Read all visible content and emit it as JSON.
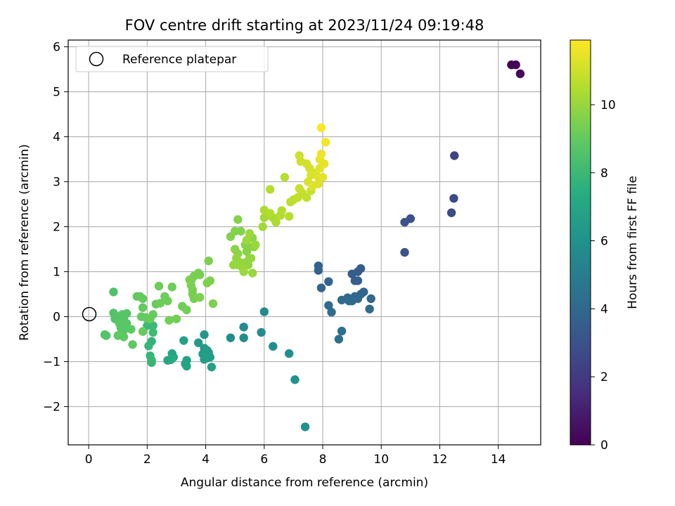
{
  "chart_data": {
    "type": "scatter",
    "title": "FOV centre drift starting at 2023/11/24 09:19:48",
    "xlabel": "Angular distance from reference (arcmin)",
    "ylabel": "Rotation from reference (arcmin)",
    "xlim": [
      -0.7,
      15.45
    ],
    "ylim": [
      -2.85,
      6.15
    ],
    "xticks": [
      0,
      2,
      4,
      6,
      8,
      10,
      12,
      14
    ],
    "yticks": [
      -2,
      -1,
      0,
      1,
      2,
      3,
      4,
      5,
      6
    ],
    "xtick_labels": [
      "0",
      "2",
      "4",
      "6",
      "8",
      "10",
      "12",
      "14"
    ],
    "ytick_labels": [
      "−2",
      "−1",
      "0",
      "1",
      "2",
      "3",
      "4",
      "5",
      "6"
    ],
    "grid": true,
    "legend": {
      "placement": "top-left",
      "entries": [
        "Reference platepar"
      ]
    },
    "reference_point": {
      "x": 0,
      "y": 0
    },
    "colorbar": {
      "label": "Hours from first FF file",
      "colormap": "viridis",
      "range": [
        0,
        11.9
      ],
      "ticks": [
        0,
        2,
        4,
        6,
        8,
        10
      ],
      "tick_labels": [
        "0",
        "2",
        "4",
        "6",
        "8",
        "10"
      ]
    },
    "points": [
      [
        14.45,
        5.6,
        0.05
      ],
      [
        14.6,
        5.6,
        0.1
      ],
      [
        14.75,
        5.4,
        0.2
      ],
      [
        12.5,
        3.58,
        2.4
      ],
      [
        12.48,
        2.63,
        2.6
      ],
      [
        12.4,
        2.31,
        2.7
      ],
      [
        11.0,
        2.18,
        2.9
      ],
      [
        10.8,
        2.1,
        3.0
      ],
      [
        10.8,
        1.43,
        3.1
      ],
      [
        9.3,
        1.07,
        3.4
      ],
      [
        9.2,
        1.0,
        3.5
      ],
      [
        9.0,
        0.95,
        3.5
      ],
      [
        9.1,
        0.8,
        3.6
      ],
      [
        9.2,
        0.8,
        3.6
      ],
      [
        7.85,
        1.13,
        3.7
      ],
      [
        7.85,
        1.03,
        3.7
      ],
      [
        8.2,
        0.78,
        3.8
      ],
      [
        7.95,
        0.64,
        3.8
      ],
      [
        9.65,
        0.4,
        3.9
      ],
      [
        9.4,
        0.55,
        3.9
      ],
      [
        9.3,
        0.5,
        3.9
      ],
      [
        9.1,
        0.45,
        4.0
      ],
      [
        9.2,
        0.4,
        4.0
      ],
      [
        9.0,
        0.35,
        4.0
      ],
      [
        8.85,
        0.42,
        4.0
      ],
      [
        8.65,
        0.37,
        4.1
      ],
      [
        8.9,
        0.35,
        4.1
      ],
      [
        9.6,
        0.17,
        4.1
      ],
      [
        8.2,
        0.25,
        4.2
      ],
      [
        8.3,
        0.1,
        4.2
      ],
      [
        8.65,
        -0.32,
        4.3
      ],
      [
        8.55,
        -0.5,
        4.3
      ],
      [
        6.0,
        0.11,
        5.6
      ],
      [
        5.3,
        -0.23,
        5.7
      ],
      [
        5.9,
        -0.35,
        5.7
      ],
      [
        4.85,
        -0.47,
        5.8
      ],
      [
        5.3,
        -0.47,
        5.8
      ],
      [
        6.3,
        -0.66,
        5.9
      ],
      [
        6.85,
        -0.82,
        5.9
      ],
      [
        7.05,
        -1.4,
        6.0
      ],
      [
        7.4,
        -2.45,
        6.0
      ],
      [
        3.95,
        -0.4,
        6.3
      ],
      [
        3.75,
        -0.58,
        6.4
      ],
      [
        3.95,
        -0.7,
        6.4
      ],
      [
        4.05,
        -0.75,
        6.5
      ],
      [
        4.1,
        -0.8,
        6.5
      ],
      [
        3.9,
        -0.83,
        6.5
      ],
      [
        4.05,
        -0.92,
        6.6
      ],
      [
        3.95,
        -0.95,
        6.6
      ],
      [
        4.15,
        -0.9,
        6.6
      ],
      [
        4.2,
        -1.12,
        6.7
      ],
      [
        3.25,
        -0.53,
        6.8
      ],
      [
        3.35,
        -0.97,
        6.8
      ],
      [
        3.3,
        -1.05,
        6.9
      ],
      [
        3.35,
        -1.1,
        6.9
      ],
      [
        2.85,
        -0.82,
        7.0
      ],
      [
        2.9,
        -0.9,
        7.0
      ],
      [
        2.8,
        -0.96,
        7.1
      ],
      [
        2.7,
        -0.97,
        7.1
      ],
      [
        2.85,
        -0.93,
        7.2
      ],
      [
        2.15,
        -0.55,
        7.7
      ],
      [
        2.05,
        -0.65,
        7.8
      ],
      [
        2.1,
        -0.87,
        7.8
      ],
      [
        2.15,
        -0.97,
        7.9
      ],
      [
        2.15,
        -1.02,
        7.9
      ],
      [
        2.0,
        -0.2,
        8.0
      ],
      [
        2.2,
        -0.2,
        8.0
      ],
      [
        2.05,
        -0.1,
        8.1
      ],
      [
        2.2,
        -0.35,
        8.1
      ],
      [
        0.85,
        0.55,
        8.5
      ],
      [
        0.55,
        -0.4,
        8.5
      ],
      [
        0.6,
        -0.42,
        8.6
      ],
      [
        0.85,
        0.08,
        8.6
      ],
      [
        0.9,
        -0.05,
        8.6
      ],
      [
        1.0,
        0.0,
        8.7
      ],
      [
        1.15,
        0.05,
        8.7
      ],
      [
        1.3,
        0.07,
        8.7
      ],
      [
        1.2,
        -0.05,
        8.7
      ],
      [
        1.05,
        -0.15,
        8.8
      ],
      [
        1.1,
        -0.25,
        8.8
      ],
      [
        1.2,
        -0.3,
        8.8
      ],
      [
        1.3,
        -0.15,
        8.8
      ],
      [
        1.15,
        -0.4,
        8.8
      ],
      [
        1.0,
        -0.42,
        8.9
      ],
      [
        1.2,
        -0.45,
        8.9
      ],
      [
        1.45,
        -0.28,
        8.9
      ],
      [
        1.5,
        -0.62,
        8.9
      ],
      [
        1.65,
        0.45,
        9.0
      ],
      [
        1.75,
        0.45,
        9.0
      ],
      [
        1.85,
        0.4,
        9.0
      ],
      [
        1.85,
        0.2,
        9.0
      ],
      [
        1.8,
        0.0,
        9.0
      ],
      [
        1.95,
        -0.02,
        9.0
      ],
      [
        2.1,
        -0.05,
        9.1
      ],
      [
        2.2,
        0.05,
        9.1
      ],
      [
        1.85,
        -0.33,
        9.1
      ],
      [
        2.3,
        0.28,
        9.1
      ],
      [
        2.45,
        0.3,
        9.2
      ],
      [
        2.4,
        0.68,
        9.2
      ],
      [
        2.6,
        0.45,
        9.2
      ],
      [
        2.7,
        0.35,
        9.2
      ],
      [
        2.85,
        0.66,
        9.2
      ],
      [
        2.75,
        -0.08,
        9.3
      ],
      [
        3.0,
        -0.05,
        9.3
      ],
      [
        3.2,
        0.23,
        9.3
      ],
      [
        3.35,
        0.15,
        9.3
      ],
      [
        3.5,
        0.8,
        9.3
      ],
      [
        3.6,
        0.9,
        9.4
      ],
      [
        3.6,
        0.9,
        9.4
      ],
      [
        3.75,
        0.97,
        9.4
      ],
      [
        3.8,
        0.93,
        9.4
      ],
      [
        3.55,
        0.6,
        9.4
      ],
      [
        3.55,
        0.5,
        9.4
      ],
      [
        3.6,
        0.4,
        9.4
      ],
      [
        3.8,
        0.43,
        9.5
      ],
      [
        4.05,
        0.75,
        9.5
      ],
      [
        4.15,
        0.8,
        9.5
      ],
      [
        4.1,
        1.24,
        9.5
      ],
      [
        4.25,
        0.29,
        9.5
      ],
      [
        3.45,
        0.82,
        9.5
      ],
      [
        3.5,
        0.7,
        9.5
      ],
      [
        4.85,
        1.78,
        9.6
      ],
      [
        5.0,
        1.9,
        9.6
      ],
      [
        5.1,
        2.16,
        9.6
      ],
      [
        5.2,
        1.9,
        9.6
      ],
      [
        5.35,
        1.6,
        9.7
      ],
      [
        5.4,
        1.45,
        9.7
      ],
      [
        5.5,
        1.55,
        9.7
      ],
      [
        5.5,
        1.3,
        9.7
      ],
      [
        5.6,
        1.75,
        9.8
      ],
      [
        5.65,
        1.55,
        9.8
      ],
      [
        5.0,
        1.5,
        9.8
      ],
      [
        5.1,
        1.4,
        9.8
      ],
      [
        5.05,
        1.3,
        9.9
      ],
      [
        5.2,
        1.2,
        9.9
      ],
      [
        5.35,
        1.2,
        9.9
      ],
      [
        5.45,
        1.15,
        9.9
      ],
      [
        5.55,
        1.3,
        10.0
      ],
      [
        5.6,
        0.97,
        10.0
      ],
      [
        4.95,
        1.15,
        10.0
      ],
      [
        5.1,
        1.15,
        10.0
      ],
      [
        5.25,
        1.1,
        10.0
      ],
      [
        5.4,
        1.7,
        10.1
      ],
      [
        5.5,
        1.85,
        10.1
      ],
      [
        5.7,
        1.6,
        10.1
      ],
      [
        5.3,
        1.0,
        10.1
      ],
      [
        5.95,
        2.0,
        10.2
      ],
      [
        6.0,
        2.2,
        10.2
      ],
      [
        6.1,
        2.25,
        10.3
      ],
      [
        6.3,
        2.2,
        10.3
      ],
      [
        6.4,
        2.1,
        10.4
      ],
      [
        6.0,
        2.37,
        10.4
      ],
      [
        6.2,
        2.3,
        10.5
      ],
      [
        6.6,
        2.36,
        10.5
      ],
      [
        6.55,
        2.25,
        10.5
      ],
      [
        6.85,
        2.23,
        10.6
      ],
      [
        6.7,
        3.1,
        10.6
      ],
      [
        6.2,
        2.83,
        10.6
      ],
      [
        6.9,
        2.55,
        10.7
      ],
      [
        7.0,
        2.6,
        10.7
      ],
      [
        7.15,
        2.65,
        10.8
      ],
      [
        7.3,
        2.75,
        10.8
      ],
      [
        7.45,
        2.65,
        10.8
      ],
      [
        7.2,
        2.85,
        10.9
      ],
      [
        7.6,
        2.8,
        10.9
      ],
      [
        7.2,
        3.58,
        11.0
      ],
      [
        7.25,
        3.45,
        11.0
      ],
      [
        7.45,
        3.4,
        11.1
      ],
      [
        7.55,
        3.3,
        11.1
      ],
      [
        7.6,
        3.15,
        11.2
      ],
      [
        7.75,
        3.2,
        11.2
      ],
      [
        7.5,
        3.0,
        11.2
      ],
      [
        7.65,
        2.9,
        11.3
      ],
      [
        7.85,
        2.95,
        11.3
      ],
      [
        7.85,
        3.1,
        11.3
      ],
      [
        7.9,
        3.3,
        11.4
      ],
      [
        8.0,
        3.1,
        11.4
      ],
      [
        8.05,
        3.4,
        11.5
      ],
      [
        7.9,
        3.5,
        11.5
      ],
      [
        7.95,
        3.62,
        11.6
      ],
      [
        8.1,
        3.88,
        11.7
      ],
      [
        7.95,
        4.2,
        11.9
      ]
    ]
  }
}
